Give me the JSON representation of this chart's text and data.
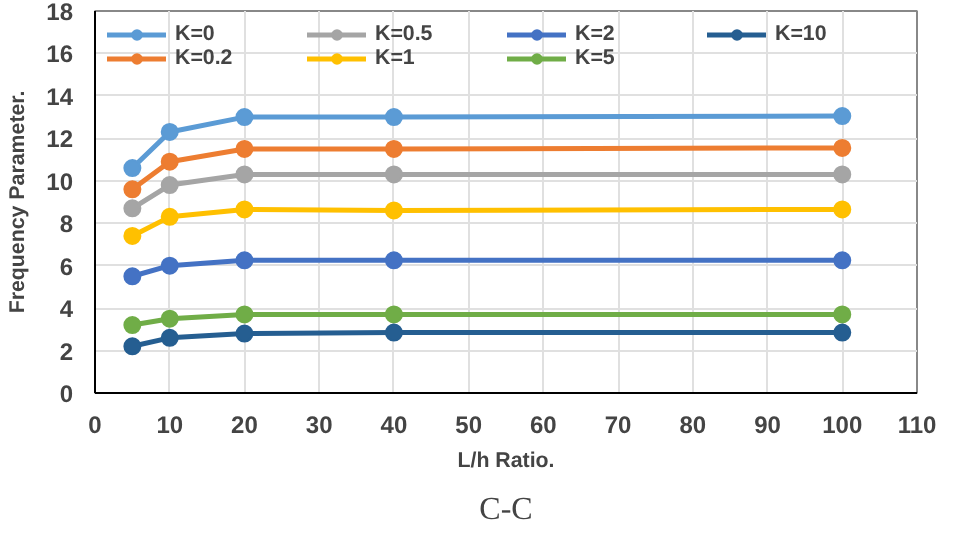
{
  "chart_data": {
    "type": "line",
    "xlabel": "L/h Ratio.",
    "ylabel": "Frequency Parameter.",
    "annotations": [
      "C-C"
    ],
    "x": [
      5,
      10,
      20,
      40,
      100
    ],
    "series": [
      {
        "name": "K=0",
        "color": "#5b9bd5",
        "values": [
          10.6,
          12.3,
          13.0,
          13.0,
          13.05
        ]
      },
      {
        "name": "K=0.2",
        "color": "#ed7d31",
        "values": [
          9.6,
          10.9,
          11.5,
          11.5,
          11.55
        ]
      },
      {
        "name": "K=0.5",
        "color": "#a5a5a5",
        "values": [
          8.7,
          9.8,
          10.3,
          10.3,
          10.3
        ]
      },
      {
        "name": "K=1",
        "color": "#ffc000",
        "values": [
          7.4,
          8.3,
          8.65,
          8.6,
          8.65
        ]
      },
      {
        "name": "K=2",
        "color": "#4472c4",
        "values": [
          5.5,
          6.0,
          6.25,
          6.25,
          6.25
        ]
      },
      {
        "name": "K=5",
        "color": "#70ad47",
        "values": [
          3.2,
          3.5,
          3.7,
          3.7,
          3.7
        ]
      },
      {
        "name": "K=10",
        "color": "#255e91",
        "values": [
          2.2,
          2.6,
          2.8,
          2.85,
          2.85
        ]
      }
    ],
    "xlim": [
      0,
      110
    ],
    "xticks": [
      0,
      10,
      20,
      30,
      40,
      50,
      60,
      70,
      80,
      90,
      100,
      110
    ],
    "ylim": [
      0,
      18
    ],
    "yticks": [
      0,
      2,
      4,
      6,
      8,
      10,
      12,
      14,
      16,
      18
    ],
    "grid": true,
    "legend": "top",
    "marker": "circle",
    "line_style": "solid"
  }
}
